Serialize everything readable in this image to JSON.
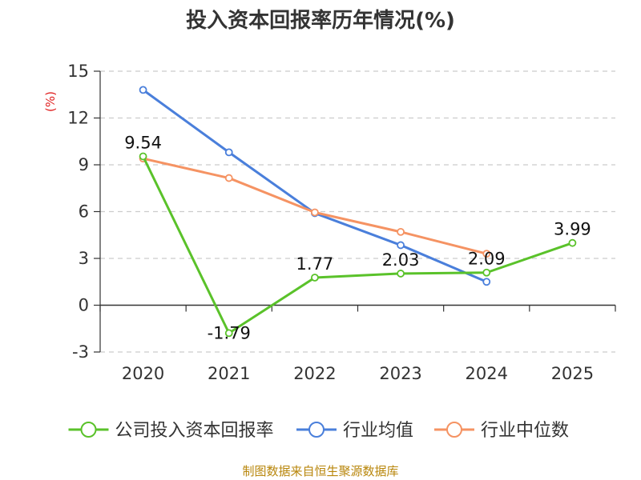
{
  "chart_data": {
    "type": "line",
    "title": "投入资本回报率历年情况(%)",
    "ylabel": "(%)",
    "categories": [
      "2020",
      "2021",
      "2022",
      "2023",
      "2024",
      "2025"
    ],
    "ylim": [
      -3,
      15
    ],
    "yticks": [
      15,
      12,
      9,
      6,
      3,
      0,
      -3
    ],
    "grid": true,
    "legend_position": "bottom",
    "series": [
      {
        "name": "公司投入资本回报率",
        "color": "#5ac22a",
        "values": [
          9.54,
          -1.79,
          1.77,
          2.03,
          2.09,
          3.99
        ],
        "labels": [
          "9.54",
          "-1.79",
          "1.77",
          "2.03",
          "2.09",
          "3.99"
        ]
      },
      {
        "name": "行业均值",
        "color": "#4a7fdb",
        "values": [
          13.8,
          9.8,
          5.9,
          3.85,
          1.5,
          null
        ]
      },
      {
        "name": "行业中位数",
        "color": "#f59363",
        "values": [
          9.4,
          8.15,
          5.95,
          4.7,
          3.3,
          null
        ]
      }
    ],
    "source": "制图数据来自恒生聚源数据库"
  }
}
